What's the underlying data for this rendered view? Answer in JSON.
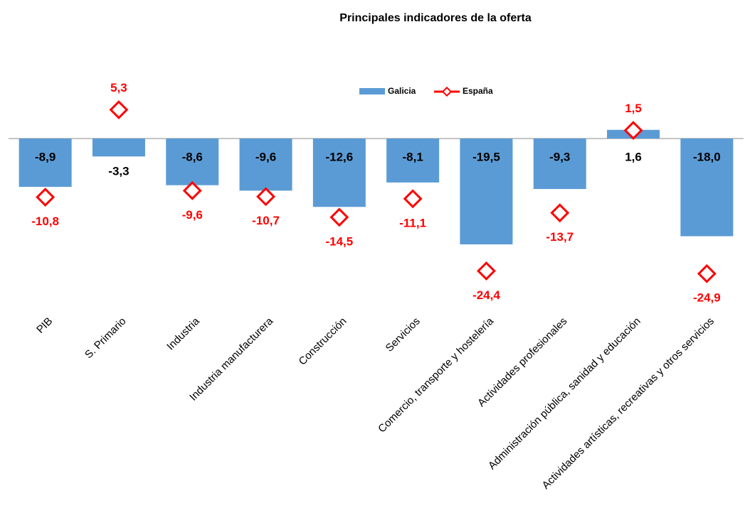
{
  "chart_data": {
    "type": "bar-marker",
    "title": "Principales indicadores de la oferta",
    "categories": [
      "PIB",
      "S. Primario",
      "Industria",
      "Industria manufacturera",
      "Construcción",
      "Servicios",
      "Comercio, transporte y hostelería",
      "Actividades profesionales",
      "Administración pública, sanidad y educación",
      "Actividades artísticas, recreativas y otros servicios"
    ],
    "series": [
      {
        "name": "Galicia",
        "color": "#5b9bd5",
        "kind": "bar",
        "values": [
          -8.9,
          -3.3,
          -8.6,
          -9.6,
          -12.6,
          -8.1,
          -19.5,
          -9.3,
          1.6,
          -18.0
        ],
        "value_labels": [
          "-8,9",
          "-3,3",
          "-8,6",
          "-9,6",
          "-12,6",
          "-8,1",
          "-19,5",
          "-9,3",
          "1,6",
          "-18,0"
        ]
      },
      {
        "name": "España",
        "color": "#ff0000",
        "kind": "marker",
        "values": [
          -10.8,
          5.3,
          -9.6,
          -10.7,
          -14.5,
          -11.1,
          -24.4,
          -13.7,
          1.5,
          -24.9
        ],
        "value_labels": [
          "-10,8",
          "5,3",
          "-9,6",
          "-10,7",
          "-14,5",
          "-11,1",
          "-24,4",
          "-13,7",
          "1,5",
          "-24,9"
        ]
      }
    ],
    "legend": "top"
  }
}
